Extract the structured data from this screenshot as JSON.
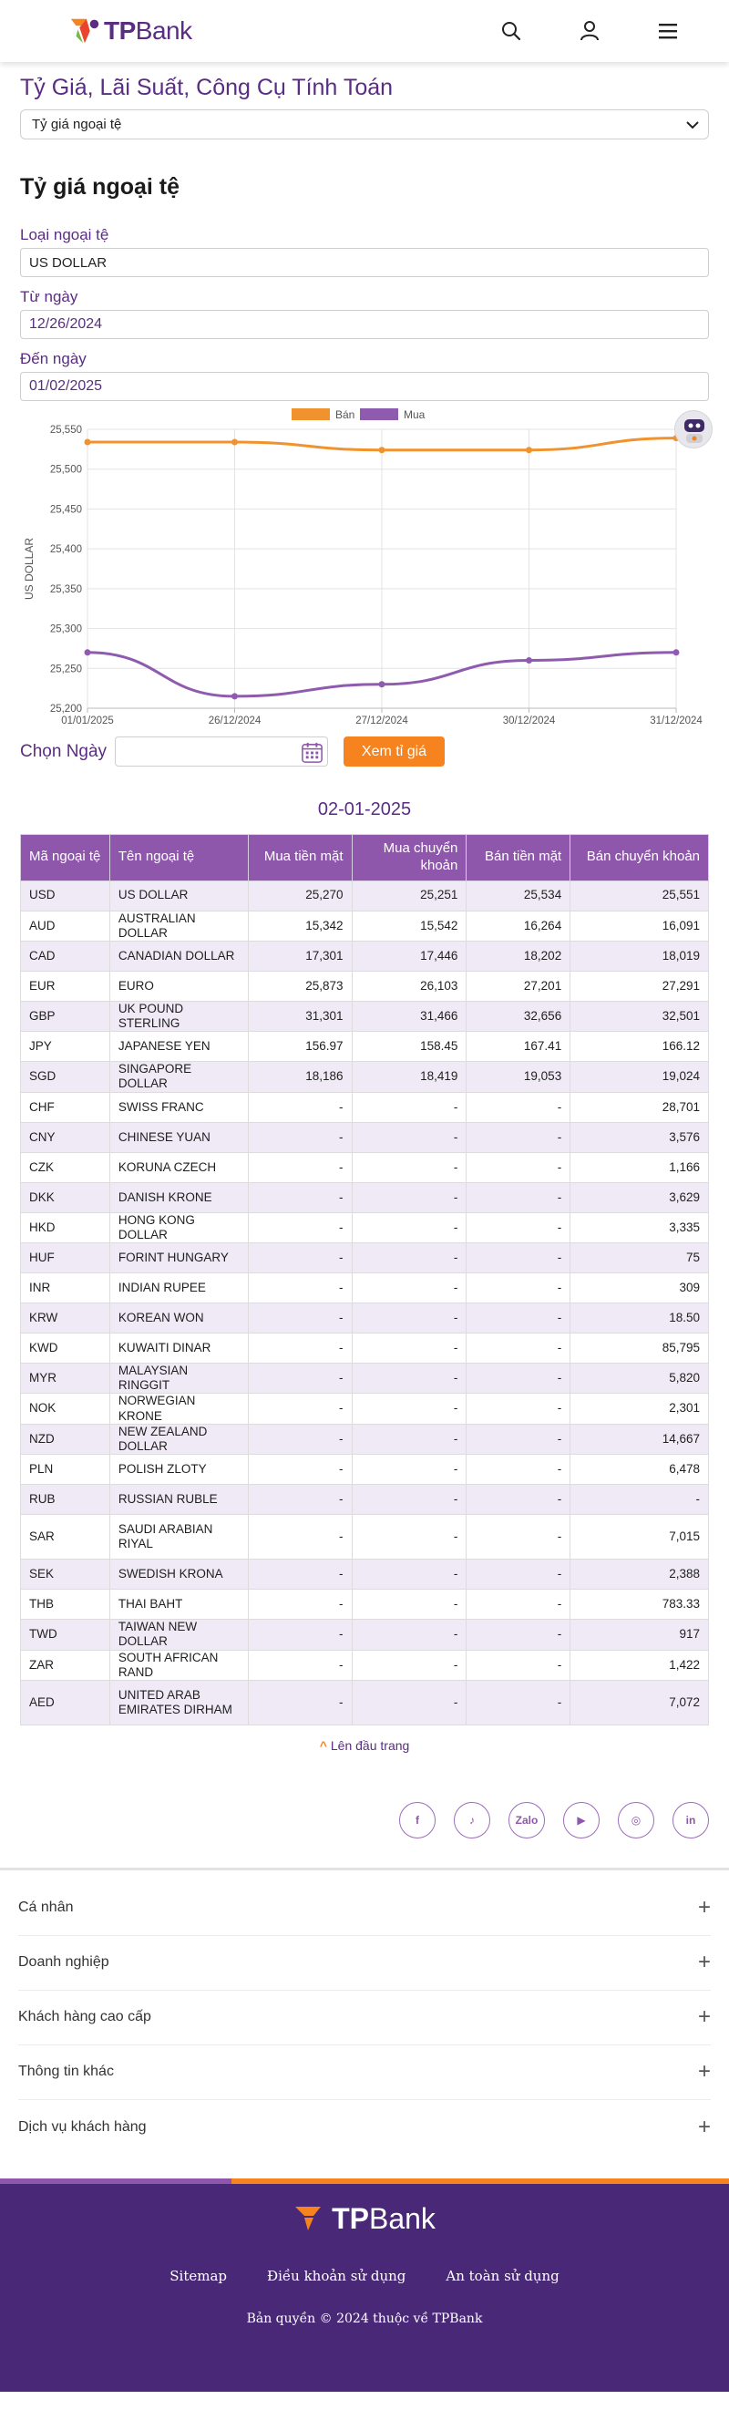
{
  "header": {
    "logo_tp": "TP",
    "logo_bank": "Bank",
    "icons": [
      "search-icon",
      "user-icon",
      "menu-icon"
    ]
  },
  "page": {
    "title": "Tỷ Giá, Lãi Suất, Công Cụ Tính Toán",
    "select_value": "Tỷ giá ngoại tệ",
    "section_title": "Tỷ giá ngoại tệ",
    "currency_label": "Loại ngoại tệ",
    "currency_value": "US DOLLAR",
    "from_label": "Từ ngày",
    "from_value": "12/26/2024",
    "to_label": "Đến ngày",
    "to_value": "01/02/2025"
  },
  "chart_data": {
    "type": "line",
    "categories": [
      "01/01/2025",
      "26/12/2024",
      "27/12/2024",
      "30/12/2024",
      "31/12/2024"
    ],
    "series": [
      {
        "name": "Bán",
        "color": "#f0922e",
        "values": [
          25534,
          25534,
          25524,
          25524,
          25539
        ]
      },
      {
        "name": "Mua",
        "color": "#8e5bae",
        "values": [
          25270,
          25215,
          25230,
          25260,
          25270
        ]
      }
    ],
    "ylabel": "US DOLLAR",
    "ylim": [
      25200,
      25550
    ],
    "yticks": [
      "25,200",
      "25,250",
      "25,300",
      "25,350",
      "25,400",
      "25,450",
      "25,500",
      "25,550"
    ],
    "grid": true,
    "legend": "top-center"
  },
  "filter": {
    "label": "Chọn Ngày",
    "button": "Xem tỉ giá"
  },
  "table": {
    "date": "02-01-2025",
    "headers": [
      "Mã ngoại tệ",
      "Tên ngoại tệ",
      "Mua tiền mặt",
      "Mua chuyển khoản",
      "Bán tiền mặt",
      "Bán chuyển khoản"
    ],
    "rows": [
      [
        "USD",
        "US DOLLAR",
        "25,270",
        "25,251",
        "25,534",
        "25,551"
      ],
      [
        "AUD",
        "AUSTRALIAN DOLLAR",
        "15,342",
        "15,542",
        "16,264",
        "16,091"
      ],
      [
        "CAD",
        "CANADIAN DOLLAR",
        "17,301",
        "17,446",
        "18,202",
        "18,019"
      ],
      [
        "EUR",
        "EURO",
        "25,873",
        "26,103",
        "27,201",
        "27,291"
      ],
      [
        "GBP",
        "UK POUND STERLING",
        "31,301",
        "31,466",
        "32,656",
        "32,501"
      ],
      [
        "JPY",
        "JAPANESE YEN",
        "156.97",
        "158.45",
        "167.41",
        "166.12"
      ],
      [
        "SGD",
        "SINGAPORE DOLLAR",
        "18,186",
        "18,419",
        "19,053",
        "19,024"
      ],
      [
        "CHF",
        "SWISS FRANC",
        "-",
        "-",
        "-",
        "28,701"
      ],
      [
        "CNY",
        "CHINESE YUAN",
        "-",
        "-",
        "-",
        "3,576"
      ],
      [
        "CZK",
        "KORUNA CZECH",
        "-",
        "-",
        "-",
        "1,166"
      ],
      [
        "DKK",
        "DANISH KRONE",
        "-",
        "-",
        "-",
        "3,629"
      ],
      [
        "HKD",
        "HONG KONG DOLLAR",
        "-",
        "-",
        "-",
        "3,335"
      ],
      [
        "HUF",
        "FORINT HUNGARY",
        "-",
        "-",
        "-",
        "75"
      ],
      [
        "INR",
        "INDIAN RUPEE",
        "-",
        "-",
        "-",
        "309"
      ],
      [
        "KRW",
        "KOREAN WON",
        "-",
        "-",
        "-",
        "18.50"
      ],
      [
        "KWD",
        "KUWAITI DINAR",
        "-",
        "-",
        "-",
        "85,795"
      ],
      [
        "MYR",
        "MALAYSIAN RINGGIT",
        "-",
        "-",
        "-",
        "5,820"
      ],
      [
        "NOK",
        "NORWEGIAN KRONE",
        "-",
        "-",
        "-",
        "2,301"
      ],
      [
        "NZD",
        "NEW ZEALAND DOLLAR",
        "-",
        "-",
        "-",
        "14,667"
      ],
      [
        "PLN",
        "POLISH ZLOTY",
        "-",
        "-",
        "-",
        "6,478"
      ],
      [
        "RUB",
        "RUSSIAN RUBLE",
        "-",
        "-",
        "-",
        "-"
      ],
      [
        "SAR",
        "SAUDI ARABIAN RIYAL",
        "-",
        "-",
        "-",
        "7,015"
      ],
      [
        "SEK",
        "SWEDISH KRONA",
        "-",
        "-",
        "-",
        "2,388"
      ],
      [
        "THB",
        "THAI BAHT",
        "-",
        "-",
        "-",
        "783.33"
      ],
      [
        "TWD",
        "TAIWAN NEW DOLLAR",
        "-",
        "-",
        "-",
        "917"
      ],
      [
        "ZAR",
        "SOUTH AFRICAN RAND",
        "-",
        "-",
        "-",
        "1,422"
      ],
      [
        "AED",
        "UNITED ARAB EMIRATES DIRHAM",
        "-",
        "-",
        "-",
        "7,072"
      ]
    ]
  },
  "to_top": "Lên đầu trang",
  "socials": [
    {
      "name": "facebook-icon",
      "glyph": "f"
    },
    {
      "name": "tiktok-icon",
      "glyph": "♪"
    },
    {
      "name": "zalo-icon",
      "glyph": "Zalo"
    },
    {
      "name": "youtube-icon",
      "glyph": "▶"
    },
    {
      "name": "instagram-icon",
      "glyph": "◎"
    },
    {
      "name": "linkedin-icon",
      "glyph": "in"
    }
  ],
  "accordion": [
    "Cá nhân",
    "Doanh nghiệp",
    "Khách hàng cao cấp",
    "Thông tin khác",
    "Dịch vụ khách hàng"
  ],
  "footer": {
    "logo_tp": "TP",
    "logo_bank": "Bank",
    "links": [
      "Sitemap",
      "Điều khoản sử dụng",
      "An toàn sử dụng"
    ],
    "copyright": "Bản quyền © 2024 thuộc về TPBank"
  },
  "colors": {
    "brand_purple": "#5a2d82",
    "accent_orange": "#f7831f",
    "table_header": "#8f57ab",
    "footer_bg": "#4a2878"
  }
}
